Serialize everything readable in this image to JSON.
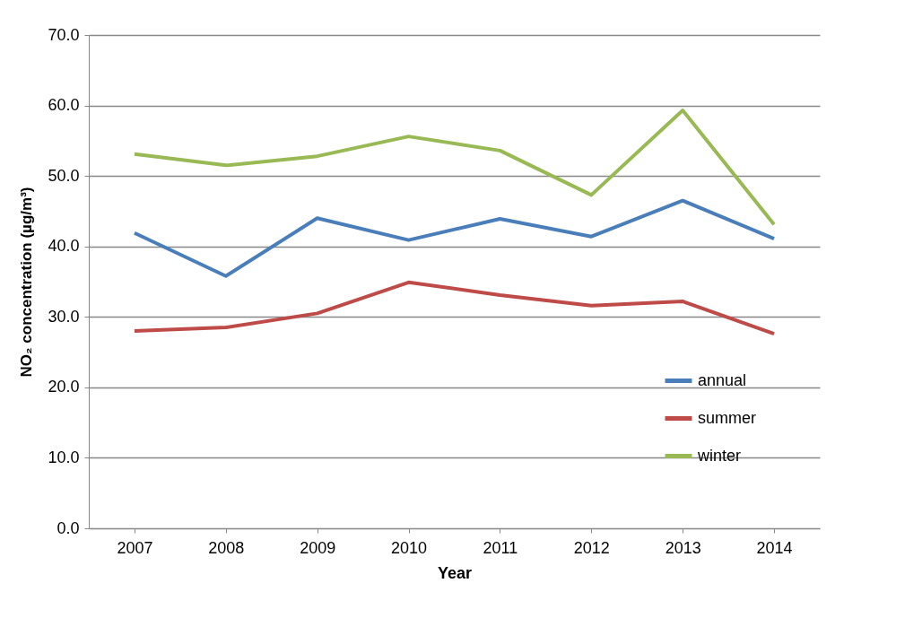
{
  "chart_data": {
    "type": "line",
    "xlabel": "Year",
    "ylabel": "NO₂ concentration  (µg/m³)",
    "categories": [
      "2007",
      "2008",
      "2009",
      "2010",
      "2011",
      "2012",
      "2013",
      "2014"
    ],
    "series": [
      {
        "name": "annual",
        "color": "#4a7ebb",
        "values": [
          41.9,
          35.8,
          44.0,
          40.9,
          43.9,
          41.4,
          46.5,
          41.1
        ]
      },
      {
        "name": "summer",
        "color": "#be4b48",
        "values": [
          28.0,
          28.5,
          30.5,
          34.9,
          33.1,
          31.6,
          32.2,
          27.6
        ]
      },
      {
        "name": "winter",
        "color": "#98b954",
        "values": [
          53.1,
          51.5,
          52.8,
          55.6,
          53.6,
          47.3,
          59.3,
          43.1
        ]
      }
    ],
    "ylim": [
      0,
      70
    ],
    "yticks": [
      {
        "value": 0,
        "label": "0.0"
      },
      {
        "value": 10,
        "label": "10.0"
      },
      {
        "value": 20,
        "label": "20.0"
      },
      {
        "value": 30,
        "label": "30.0"
      },
      {
        "value": 40,
        "label": "40.0"
      },
      {
        "value": 50,
        "label": "50.0"
      },
      {
        "value": 60,
        "label": "60.0"
      },
      {
        "value": 70,
        "label": "70.0"
      }
    ],
    "grid": "y",
    "legend": "bottom right",
    "marker": "none",
    "line_style": "solid"
  }
}
